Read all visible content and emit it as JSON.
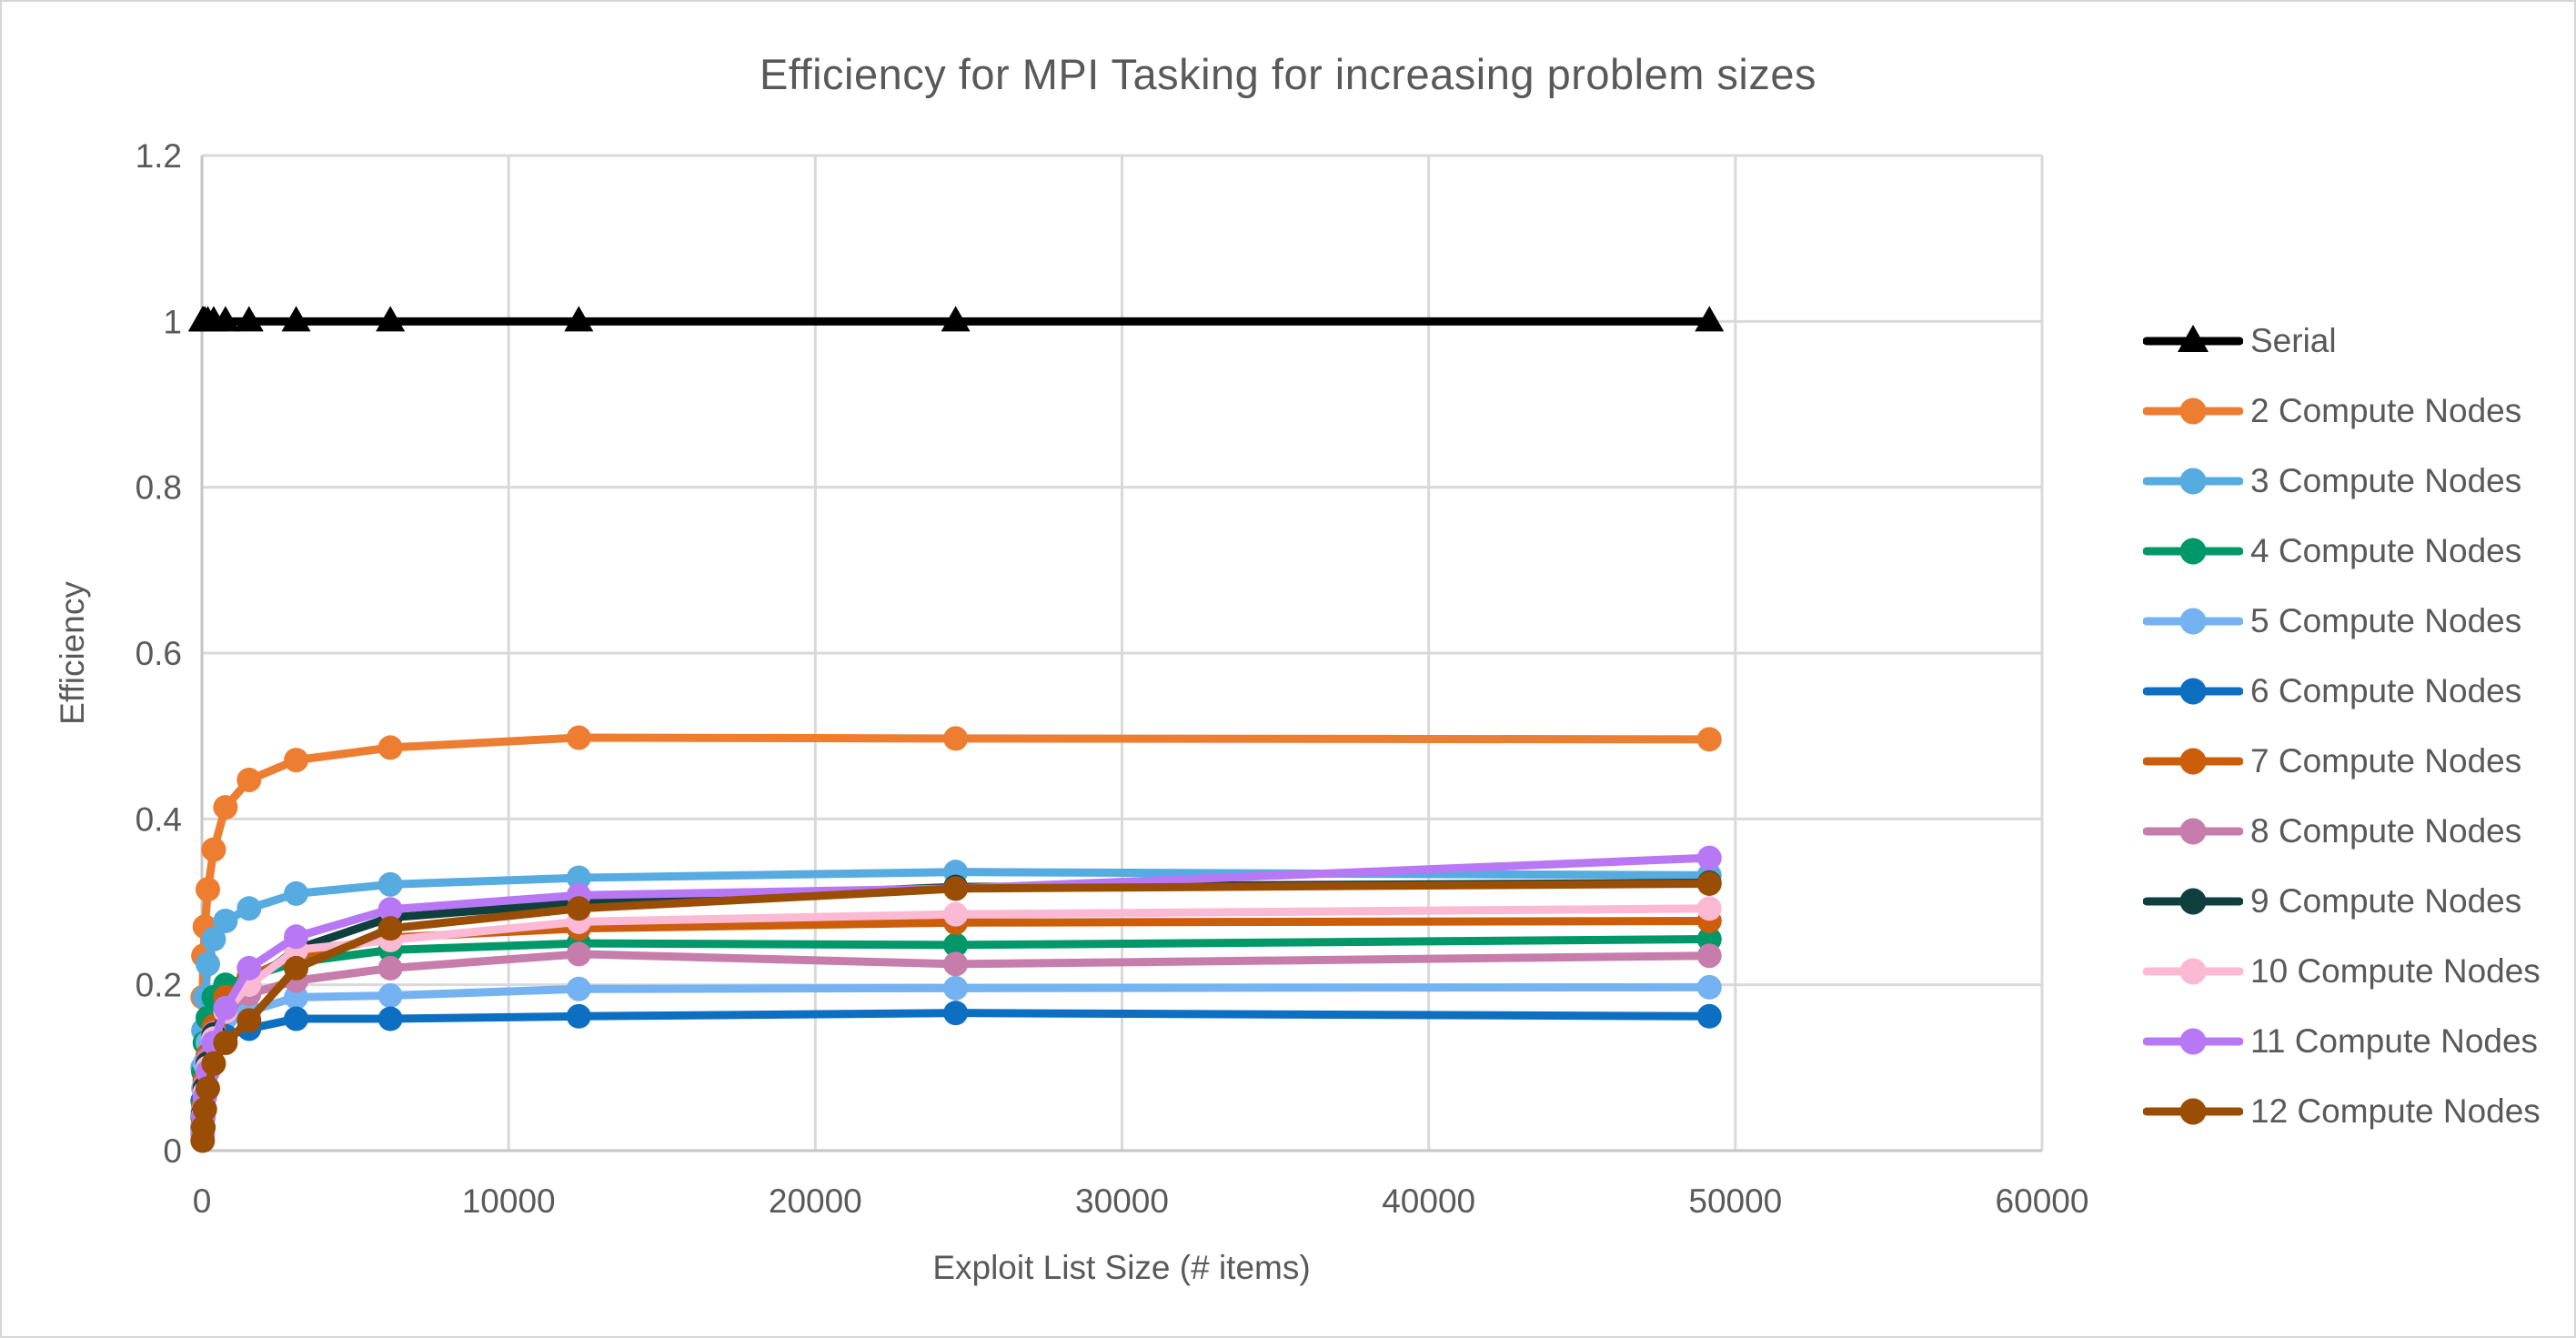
{
  "title": "Efficiency for MPI Tasking for increasing problem sizes",
  "colors": {
    "text": "#595959",
    "gridline": "#D9D9D9",
    "axis_line": "#C6C6C6",
    "background": "#FFFFFF"
  },
  "chart_data": {
    "type": "line",
    "title": "Efficiency for MPI Tasking for increasing problem sizes",
    "xlabel": "Exploit List Size (# items)",
    "ylabel": "Efficiency",
    "xlim": [
      0,
      60000
    ],
    "ylim": [
      0,
      1.2
    ],
    "x_ticks": [
      0,
      10000,
      20000,
      30000,
      40000,
      50000,
      60000
    ],
    "x_tick_labels": [
      "0",
      "10000",
      "20000",
      "30000",
      "40000",
      "50000",
      "60000"
    ],
    "y_ticks": [
      0,
      0.2,
      0.4,
      0.6,
      0.8,
      1.0,
      1.2
    ],
    "y_tick_labels": [
      "0",
      "0.2",
      "0.4",
      "0.6",
      "0.8",
      "1",
      "1.2"
    ],
    "grid": true,
    "legend_position": "right",
    "x": [
      24,
      48,
      96,
      192,
      384,
      768,
      1536,
      3072,
      6144,
      12288,
      24576,
      49152
    ],
    "series": [
      {
        "name": "Serial",
        "color": "#000000",
        "marker": "triangle",
        "values": [
          1,
          1,
          1,
          1,
          1,
          1,
          1,
          1,
          1,
          1,
          1,
          1
        ]
      },
      {
        "name": "2 Compute Nodes",
        "color": "#ED7D31",
        "marker": "circle",
        "values": [
          0.185,
          0.235,
          0.27,
          0.315,
          0.363,
          0.414,
          0.447,
          0.471,
          0.486,
          0.498,
          0.497,
          0.496
        ]
      },
      {
        "name": "3 Compute Nodes",
        "color": "#56ABE0",
        "marker": "circle",
        "values": [
          0.1,
          0.145,
          0.185,
          0.225,
          0.255,
          0.277,
          0.292,
          0.31,
          0.321,
          0.329,
          0.336,
          0.332
        ]
      },
      {
        "name": "4 Compute Nodes",
        "color": "#009868",
        "marker": "circle",
        "values": [
          0.06,
          0.095,
          0.13,
          0.16,
          0.185,
          0.2,
          0.21,
          0.227,
          0.242,
          0.25,
          0.248,
          0.255
        ]
      },
      {
        "name": "5 Compute Nodes",
        "color": "#74B2F1",
        "marker": "circle",
        "values": [
          0.045,
          0.075,
          0.105,
          0.13,
          0.148,
          0.16,
          0.168,
          0.185,
          0.187,
          0.195,
          0.196,
          0.197
        ]
      },
      {
        "name": "6 Compute Nodes",
        "color": "#0D6FC2",
        "marker": "circle",
        "values": [
          0.04,
          0.06,
          0.085,
          0.11,
          0.125,
          0.138,
          0.147,
          0.159,
          0.159,
          0.162,
          0.166,
          0.162
        ]
      },
      {
        "name": "7 Compute Nodes",
        "color": "#CB5D0B",
        "marker": "circle",
        "values": [
          0.03,
          0.055,
          0.085,
          0.115,
          0.15,
          0.185,
          0.21,
          0.235,
          0.257,
          0.268,
          0.275,
          0.277
        ]
      },
      {
        "name": "8 Compute Nodes",
        "color": "#C77DAB",
        "marker": "circle",
        "values": [
          0.028,
          0.05,
          0.08,
          0.11,
          0.142,
          0.168,
          0.189,
          0.205,
          0.22,
          0.237,
          0.225,
          0.235
        ]
      },
      {
        "name": "9 Compute Nodes",
        "color": "#0F403D",
        "marker": "circle",
        "values": [
          0.025,
          0.045,
          0.075,
          0.105,
          0.14,
          0.172,
          0.2,
          0.243,
          0.281,
          0.299,
          0.318,
          0.323
        ]
      },
      {
        "name": "10 Compute Nodes",
        "color": "#FBB9D4",
        "marker": "circle",
        "values": [
          0.022,
          0.042,
          0.07,
          0.1,
          0.135,
          0.168,
          0.2,
          0.242,
          0.254,
          0.276,
          0.285,
          0.292
        ]
      },
      {
        "name": "11 Compute Nodes",
        "color": "#B878F5",
        "marker": "circle",
        "values": [
          0.02,
          0.04,
          0.065,
          0.095,
          0.13,
          0.172,
          0.22,
          0.258,
          0.291,
          0.308,
          0.316,
          0.353
        ]
      },
      {
        "name": "12 Compute Nodes",
        "color": "#9A4D05",
        "marker": "circle",
        "values": [
          0.012,
          0.028,
          0.05,
          0.075,
          0.105,
          0.13,
          0.157,
          0.22,
          0.268,
          0.292,
          0.316,
          0.322
        ]
      }
    ]
  }
}
